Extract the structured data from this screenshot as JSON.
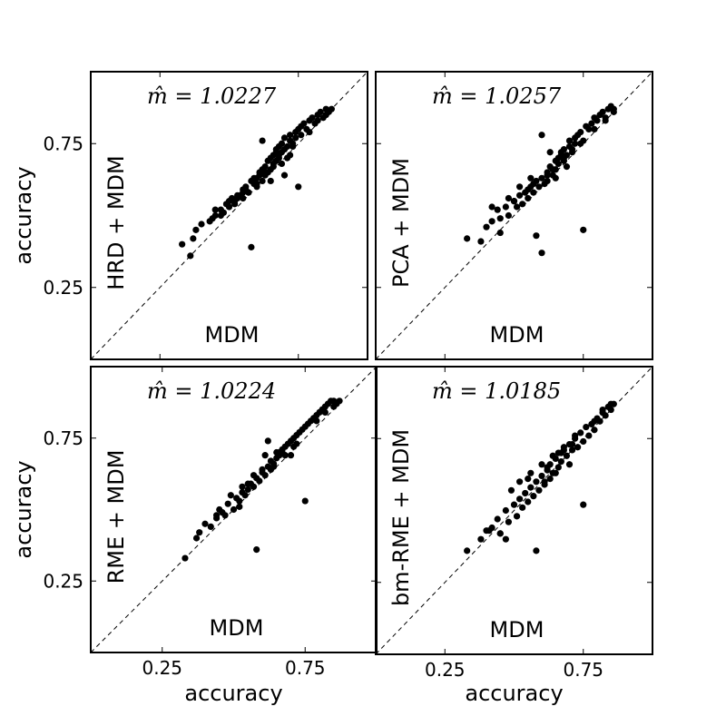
{
  "chart_data": [
    {
      "type": "scatter",
      "title": "",
      "annotation": "m̂ = 1.0227",
      "xlabel": "MDM",
      "ylabel": "HRD + MDM",
      "ylabel_outer": "accuracy",
      "xlabel_outer": "",
      "xlim": [
        0.0,
        1.0
      ],
      "ylim": [
        0.0,
        1.0
      ],
      "xticks": [],
      "yticks": [
        "0.25",
        "0.75"
      ],
      "reference_line": "y = x (dashed)",
      "series": [
        {
          "x": [
            0.33,
            0.37,
            0.38,
            0.4,
            0.43,
            0.45,
            0.47,
            0.48,
            0.5,
            0.5,
            0.52,
            0.53,
            0.54,
            0.55,
            0.55,
            0.56,
            0.57,
            0.58,
            0.59,
            0.6,
            0.6,
            0.61,
            0.62,
            0.62,
            0.63,
            0.63,
            0.64,
            0.64,
            0.65,
            0.65,
            0.66,
            0.66,
            0.67,
            0.67,
            0.68,
            0.68,
            0.69,
            0.69,
            0.7,
            0.7,
            0.71,
            0.72,
            0.72,
            0.73,
            0.74,
            0.74,
            0.75,
            0.76,
            0.76,
            0.77,
            0.78,
            0.79,
            0.8,
            0.81,
            0.82,
            0.83,
            0.84,
            0.85,
            0.86,
            0.87,
            0.58,
            0.36,
            0.62,
            0.75,
            0.7,
            0.65,
            0.47,
            0.52,
            0.57,
            0.6,
            0.63,
            0.66,
            0.69,
            0.72,
            0.45,
            0.49,
            0.53,
            0.56,
            0.59,
            0.68,
            0.79,
            0.82,
            0.85,
            0.61,
            0.55,
            0.51,
            0.44,
            0.67,
            0.71,
            0.73
          ],
          "y": [
            0.4,
            0.42,
            0.45,
            0.47,
            0.48,
            0.5,
            0.52,
            0.51,
            0.53,
            0.55,
            0.54,
            0.56,
            0.57,
            0.58,
            0.56,
            0.6,
            0.58,
            0.62,
            0.61,
            0.63,
            0.6,
            0.64,
            0.62,
            0.66,
            0.64,
            0.67,
            0.65,
            0.69,
            0.66,
            0.7,
            0.68,
            0.71,
            0.69,
            0.73,
            0.7,
            0.74,
            0.72,
            0.75,
            0.73,
            0.77,
            0.74,
            0.76,
            0.78,
            0.75,
            0.79,
            0.77,
            0.8,
            0.78,
            0.81,
            0.82,
            0.8,
            0.83,
            0.84,
            0.82,
            0.85,
            0.86,
            0.84,
            0.87,
            0.86,
            0.87,
            0.39,
            0.36,
            0.76,
            0.6,
            0.64,
            0.62,
            0.5,
            0.55,
            0.58,
            0.61,
            0.65,
            0.67,
            0.68,
            0.71,
            0.52,
            0.54,
            0.57,
            0.59,
            0.63,
            0.71,
            0.79,
            0.83,
            0.85,
            0.65,
            0.59,
            0.56,
            0.49,
            0.72,
            0.7,
            0.74
          ]
        }
      ]
    },
    {
      "type": "scatter",
      "title": "",
      "annotation": "m̂ = 1.0257",
      "xlabel": "MDM",
      "ylabel": "PCA + MDM",
      "ylabel_outer": "",
      "xlabel_outer": "",
      "xlim": [
        0.0,
        1.0
      ],
      "ylim": [
        0.0,
        1.0
      ],
      "xticks": [],
      "yticks": [],
      "reference_line": "y = x (dashed)",
      "series": [
        {
          "x": [
            0.33,
            0.38,
            0.4,
            0.42,
            0.44,
            0.45,
            0.47,
            0.48,
            0.5,
            0.51,
            0.52,
            0.53,
            0.54,
            0.55,
            0.56,
            0.57,
            0.58,
            0.59,
            0.6,
            0.61,
            0.62,
            0.62,
            0.63,
            0.64,
            0.65,
            0.65,
            0.66,
            0.66,
            0.67,
            0.68,
            0.68,
            0.69,
            0.7,
            0.7,
            0.71,
            0.72,
            0.72,
            0.73,
            0.74,
            0.75,
            0.76,
            0.77,
            0.78,
            0.79,
            0.8,
            0.81,
            0.82,
            0.83,
            0.84,
            0.85,
            0.86,
            0.6,
            0.75,
            0.58,
            0.45,
            0.52,
            0.56,
            0.64,
            0.68,
            0.71,
            0.48,
            0.55,
            0.62,
            0.67,
            0.74,
            0.79,
            0.83,
            0.86,
            0.6,
            0.63,
            0.69,
            0.65,
            0.57,
            0.5,
            0.42
          ],
          "y": [
            0.42,
            0.41,
            0.46,
            0.48,
            0.52,
            0.49,
            0.53,
            0.5,
            0.55,
            0.53,
            0.57,
            0.54,
            0.58,
            0.56,
            0.6,
            0.58,
            0.62,
            0.6,
            0.63,
            0.61,
            0.65,
            0.62,
            0.67,
            0.64,
            0.69,
            0.66,
            0.7,
            0.68,
            0.72,
            0.69,
            0.73,
            0.71,
            0.74,
            0.76,
            0.72,
            0.77,
            0.75,
            0.78,
            0.79,
            0.76,
            0.81,
            0.8,
            0.82,
            0.84,
            0.83,
            0.85,
            0.86,
            0.84,
            0.87,
            0.88,
            0.86,
            0.37,
            0.45,
            0.43,
            0.44,
            0.6,
            0.63,
            0.66,
            0.7,
            0.73,
            0.56,
            0.59,
            0.64,
            0.71,
            0.75,
            0.8,
            0.83,
            0.87,
            0.78,
            0.72,
            0.67,
            0.63,
            0.61,
            0.55,
            0.53
          ]
        }
      ]
    },
    {
      "type": "scatter",
      "title": "",
      "annotation": "m̂ = 1.0224",
      "xlabel": "MDM",
      "ylabel": "RME + MDM",
      "ylabel_outer": "accuracy",
      "xlabel_outer": "accuracy",
      "xlim": [
        0.0,
        1.0
      ],
      "ylim": [
        0.0,
        1.0
      ],
      "xticks": [
        "0.25",
        "0.75"
      ],
      "yticks": [
        "0.25",
        "0.75"
      ],
      "reference_line": "y = x (dashed)",
      "series": [
        {
          "x": [
            0.33,
            0.37,
            0.38,
            0.4,
            0.42,
            0.44,
            0.45,
            0.47,
            0.48,
            0.5,
            0.51,
            0.52,
            0.53,
            0.54,
            0.55,
            0.56,
            0.57,
            0.58,
            0.59,
            0.6,
            0.61,
            0.62,
            0.63,
            0.63,
            0.64,
            0.65,
            0.66,
            0.66,
            0.67,
            0.68,
            0.69,
            0.7,
            0.71,
            0.72,
            0.73,
            0.74,
            0.75,
            0.76,
            0.77,
            0.78,
            0.79,
            0.8,
            0.81,
            0.82,
            0.83,
            0.84,
            0.85,
            0.86,
            0.87,
            0.58,
            0.75,
            0.62,
            0.46,
            0.53,
            0.57,
            0.64,
            0.68,
            0.71,
            0.49,
            0.55,
            0.6,
            0.67,
            0.72,
            0.79,
            0.82,
            0.85,
            0.61,
            0.65,
            0.7,
            0.52,
            0.44
          ],
          "y": [
            0.33,
            0.4,
            0.42,
            0.45,
            0.44,
            0.47,
            0.5,
            0.48,
            0.52,
            0.5,
            0.54,
            0.53,
            0.56,
            0.55,
            0.57,
            0.59,
            0.58,
            0.61,
            0.6,
            0.63,
            0.62,
            0.65,
            0.64,
            0.67,
            0.66,
            0.68,
            0.69,
            0.7,
            0.71,
            0.72,
            0.73,
            0.74,
            0.75,
            0.76,
            0.77,
            0.78,
            0.79,
            0.8,
            0.81,
            0.82,
            0.83,
            0.84,
            0.85,
            0.86,
            0.87,
            0.88,
            0.86,
            0.87,
            0.88,
            0.36,
            0.53,
            0.74,
            0.49,
            0.58,
            0.62,
            0.65,
            0.69,
            0.72,
            0.55,
            0.59,
            0.64,
            0.7,
            0.73,
            0.81,
            0.84,
            0.88,
            0.69,
            0.7,
            0.69,
            0.51,
            0.48
          ]
        }
      ]
    },
    {
      "type": "scatter",
      "title": "",
      "annotation": "m̂ = 1.0185",
      "xlabel": "MDM",
      "ylabel": "bm-RME + MDM",
      "ylabel_outer": "",
      "xlabel_outer": "accuracy",
      "xlim": [
        0.0,
        1.0
      ],
      "ylim": [
        0.0,
        1.0
      ],
      "xticks": [
        "0.25",
        "0.75"
      ],
      "yticks": [],
      "reference_line": "y = x (dashed)",
      "series": [
        {
          "x": [
            0.33,
            0.38,
            0.4,
            0.42,
            0.44,
            0.45,
            0.47,
            0.48,
            0.5,
            0.51,
            0.52,
            0.53,
            0.54,
            0.55,
            0.56,
            0.57,
            0.58,
            0.59,
            0.6,
            0.61,
            0.62,
            0.63,
            0.63,
            0.64,
            0.65,
            0.66,
            0.66,
            0.67,
            0.68,
            0.69,
            0.7,
            0.71,
            0.72,
            0.73,
            0.74,
            0.75,
            0.76,
            0.77,
            0.78,
            0.79,
            0.8,
            0.81,
            0.82,
            0.83,
            0.84,
            0.85,
            0.86,
            0.58,
            0.75,
            0.45,
            0.52,
            0.56,
            0.6,
            0.64,
            0.68,
            0.71,
            0.49,
            0.55,
            0.62,
            0.67,
            0.72,
            0.79,
            0.82,
            0.85,
            0.61,
            0.65,
            0.7,
            0.47,
            0.41
          ],
          "y": [
            0.36,
            0.4,
            0.43,
            0.44,
            0.47,
            0.42,
            0.5,
            0.46,
            0.52,
            0.48,
            0.54,
            0.51,
            0.56,
            0.53,
            0.58,
            0.55,
            0.6,
            0.57,
            0.62,
            0.59,
            0.64,
            0.61,
            0.66,
            0.63,
            0.68,
            0.65,
            0.7,
            0.67,
            0.72,
            0.69,
            0.73,
            0.71,
            0.75,
            0.72,
            0.77,
            0.74,
            0.79,
            0.76,
            0.8,
            0.78,
            0.82,
            0.81,
            0.84,
            0.83,
            0.86,
            0.85,
            0.87,
            0.36,
            0.52,
            0.42,
            0.6,
            0.63,
            0.66,
            0.69,
            0.71,
            0.73,
            0.57,
            0.61,
            0.65,
            0.7,
            0.76,
            0.81,
            0.85,
            0.87,
            0.6,
            0.63,
            0.66,
            0.4,
            0.43
          ]
        }
      ]
    }
  ]
}
